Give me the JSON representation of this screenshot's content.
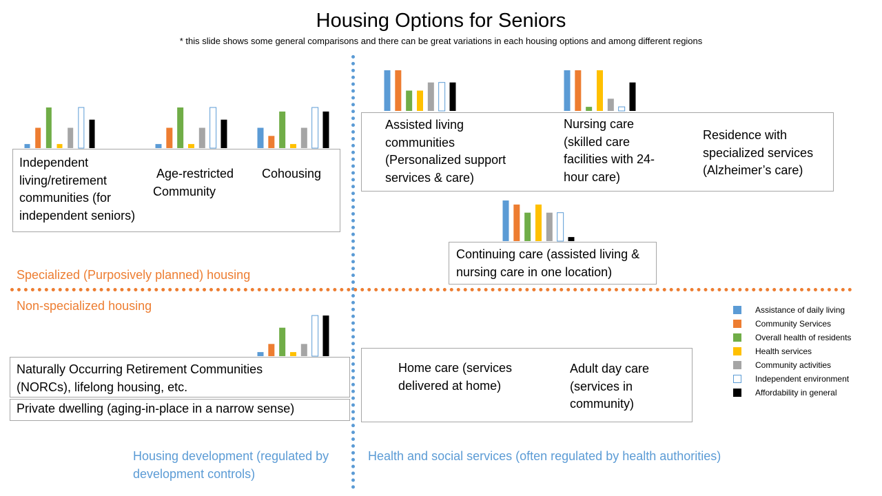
{
  "title": "Housing Options for Seniors",
  "subtitle": "* this slide shows some general comparisons and there can be great variations in each housing options and among different regions",
  "colors": {
    "blue": "#5b9bd5",
    "orange": "#ed7d31",
    "green": "#70ad47",
    "yellow": "#ffc000",
    "gray": "#a5a5a5",
    "black": "#000000"
  },
  "sections": {
    "specialized": "Specialized (Purposively planned) housing",
    "non_specialized": "Non-specialized housing",
    "housing_development": "Housing development (regulated by development controls)",
    "health_services": "Health and social services (often regulated by health authorities)"
  },
  "options": {
    "independent": "Independent living/retirement communities (for independent seniors)",
    "age_restricted": "Age-restricted Community",
    "cohousing": "Cohousing",
    "assisted": "Assisted living communities (Personalized support services & care)",
    "nursing": "Nursing care (skilled care facilities with 24-hour care)",
    "residence": "Residence with specialized services (Alzheimer’s care)",
    "continuing": "Continuing care (assisted living & nursing care in one location)",
    "norcs": "Naturally Occurring Retirement Communities (NORCs), lifelong housing, etc.",
    "private": "Private dwelling (aging-in-place in a narrow sense)",
    "home_care": "Home care (services delivered at home)",
    "adult_day": "Adult day care (services in community)"
  },
  "legend": [
    {
      "label": "Assistance of daily living",
      "color": "#5b9bd5",
      "outline": false
    },
    {
      "label": "Community Services",
      "color": "#ed7d31",
      "outline": false
    },
    {
      "label": "Overall health of residents",
      "color": "#70ad47",
      "outline": false
    },
    {
      "label": "Health services",
      "color": "#ffc000",
      "outline": false
    },
    {
      "label": "Community activities",
      "color": "#a5a5a5",
      "outline": false
    },
    {
      "label": "Independent environment",
      "color": "#ffffff",
      "outline": true
    },
    {
      "label": "Affordability in general",
      "color": "#000000",
      "outline": false
    }
  ],
  "chart_data": [
    {
      "type": "bar",
      "name": "Independent living/retirement communities",
      "categories": [
        "Assistance of daily living",
        "Community Services",
        "Overall health of residents",
        "Health services",
        "Community activities",
        "Independent environment",
        "Affordability in general"
      ],
      "values": [
        1,
        5,
        10,
        1,
        5,
        10,
        7
      ],
      "ylim": [
        0,
        10
      ]
    },
    {
      "type": "bar",
      "name": "Age-restricted Community",
      "categories": [
        "Assistance of daily living",
        "Community Services",
        "Overall health of residents",
        "Health services",
        "Community activities",
        "Independent environment",
        "Affordability in general"
      ],
      "values": [
        1,
        5,
        10,
        1,
        5,
        10,
        7
      ],
      "ylim": [
        0,
        10
      ]
    },
    {
      "type": "bar",
      "name": "Cohousing",
      "categories": [
        "Assistance of daily living",
        "Community Services",
        "Overall health of residents",
        "Health services",
        "Community activities",
        "Independent environment",
        "Affordability in general"
      ],
      "values": [
        5,
        3,
        9,
        1,
        5,
        10,
        9
      ],
      "ylim": [
        0,
        10
      ]
    },
    {
      "type": "bar",
      "name": "Assisted living communities",
      "categories": [
        "Assistance of daily living",
        "Community Services",
        "Overall health of residents",
        "Health services",
        "Community activities",
        "Independent environment",
        "Affordability in general"
      ],
      "values": [
        10,
        10,
        5,
        5,
        7,
        7,
        7
      ],
      "ylim": [
        0,
        10
      ]
    },
    {
      "type": "bar",
      "name": "Nursing care",
      "categories": [
        "Assistance of daily living",
        "Community Services",
        "Overall health of residents",
        "Health services",
        "Community activities",
        "Independent environment",
        "Affordability in general"
      ],
      "values": [
        10,
        10,
        1,
        10,
        3,
        1,
        7
      ],
      "ylim": [
        0,
        10
      ]
    },
    {
      "type": "bar",
      "name": "Continuing care",
      "categories": [
        "Assistance of daily living",
        "Community Services",
        "Overall health of residents",
        "Health services",
        "Community activities",
        "Independent environment",
        "Affordability in general"
      ],
      "values": [
        10,
        9,
        7,
        9,
        7,
        7,
        1
      ],
      "ylim": [
        0,
        10
      ]
    },
    {
      "type": "bar",
      "name": "Naturally Occurring Retirement Communities",
      "categories": [
        "Assistance of daily living",
        "Community Services",
        "Overall health of residents",
        "Health services",
        "Community activities",
        "Independent environment",
        "Affordability in general"
      ],
      "values": [
        1,
        3,
        7,
        1,
        3,
        10,
        10
      ],
      "ylim": [
        0,
        10
      ]
    }
  ]
}
